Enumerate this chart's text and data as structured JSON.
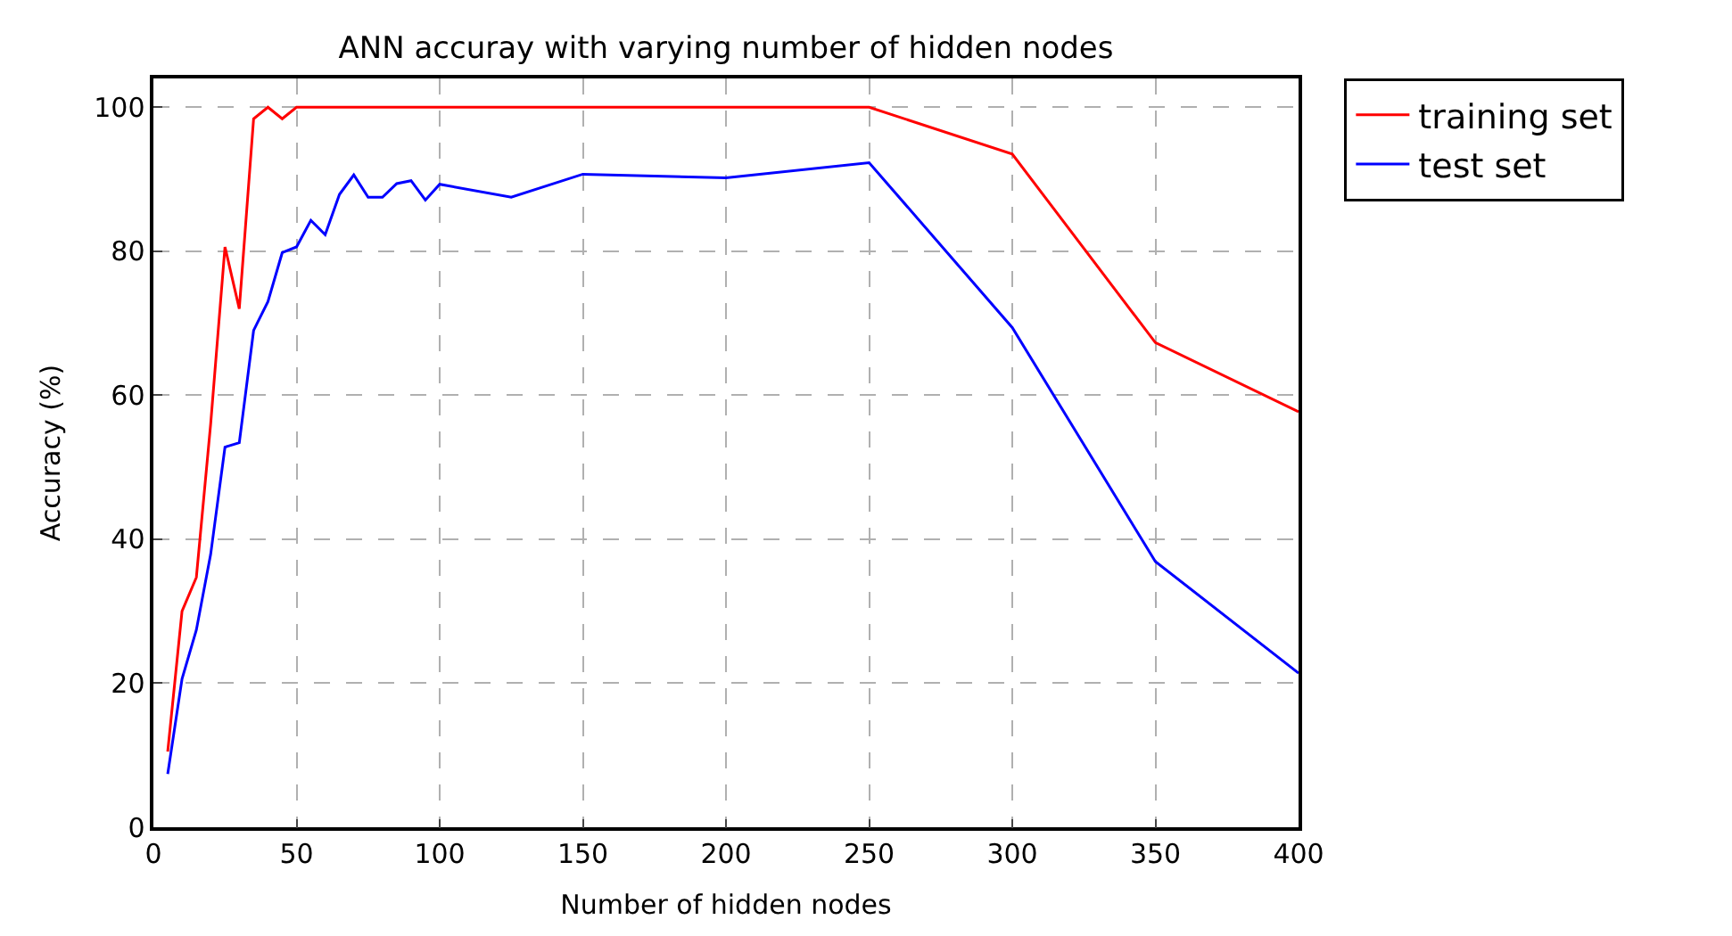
{
  "chart_data": {
    "type": "line",
    "title": "ANN accuray with varying number of hidden nodes",
    "xlabel": "Number of hidden nodes",
    "ylabel": "Accuracy (%)",
    "x": [
      5,
      10,
      15,
      20,
      25,
      30,
      35,
      40,
      45,
      50,
      55,
      60,
      65,
      70,
      75,
      80,
      85,
      90,
      95,
      100,
      125,
      150,
      200,
      250,
      300,
      350,
      400
    ],
    "series": [
      {
        "name": "training set",
        "color": "#ff0000",
        "values": [
          10.5,
          30,
          34.7,
          56,
          80.6,
          72,
          98.4,
          100,
          98.4,
          100,
          100,
          100,
          100,
          100,
          100,
          100,
          100,
          100,
          100,
          100,
          100,
          100,
          100,
          100,
          93.5,
          67.3,
          57.7
        ]
      },
      {
        "name": "test set",
        "color": "#0000ff",
        "values": [
          7.4,
          20.6,
          27.4,
          37.9,
          52.8,
          53.4,
          69,
          73,
          79.8,
          80.6,
          84.3,
          82.3,
          87.9,
          90.6,
          87.5,
          87.5,
          89.4,
          89.8,
          87.1,
          89.3,
          87.5,
          90.7,
          90.2,
          92.3,
          69.4,
          36.9,
          21.4
        ]
      }
    ],
    "xlim": [
      0,
      400
    ],
    "xticks": [
      0,
      50,
      100,
      150,
      200,
      250,
      300,
      350,
      400
    ],
    "ylim": [
      0,
      104
    ],
    "yticks": [
      0,
      20,
      40,
      60,
      80,
      100
    ],
    "grid": true,
    "legend": "top right",
    "marker": "none",
    "line_style": "solid"
  }
}
